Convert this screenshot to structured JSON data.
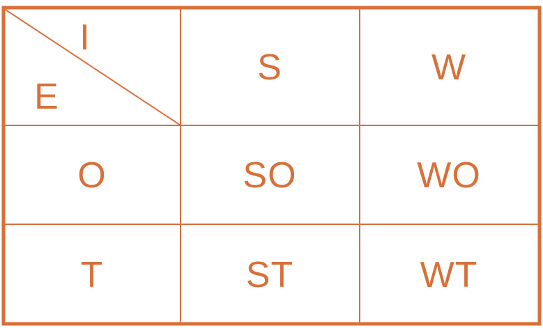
{
  "accent_color": "#d8703a",
  "matrix": {
    "corner": {
      "top_right_label": "I",
      "bottom_left_label": "E"
    },
    "column_headers": [
      "S",
      "W"
    ],
    "row_headers": [
      "O",
      "T"
    ],
    "cells": [
      [
        "SO",
        "WO"
      ],
      [
        "ST",
        "WT"
      ]
    ]
  }
}
